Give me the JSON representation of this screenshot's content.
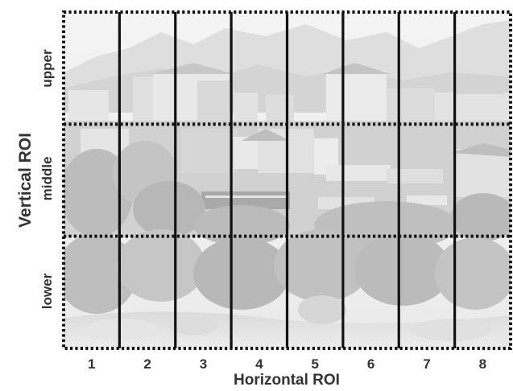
{
  "figure": {
    "vertical_axis_title": "Vertical ROI",
    "horizontal_axis_title": "Horizontal ROI",
    "row_labels": [
      "upper",
      "middle",
      "lower"
    ],
    "column_labels": [
      "1",
      "2",
      "3",
      "4",
      "5",
      "6",
      "7",
      "8"
    ],
    "photo_description_shown": false
  },
  "colors": {
    "grid_line": "#111111",
    "label_text": "#333333",
    "sky": "#ebebeb",
    "mountain": "#cfcfcf",
    "building_light": "#e2e2e2",
    "building_dark": "#b9b9b9",
    "foliage_light": "#bdbdbd",
    "foliage_dark": "#9a9a9a",
    "water": "#d8d8d8"
  }
}
